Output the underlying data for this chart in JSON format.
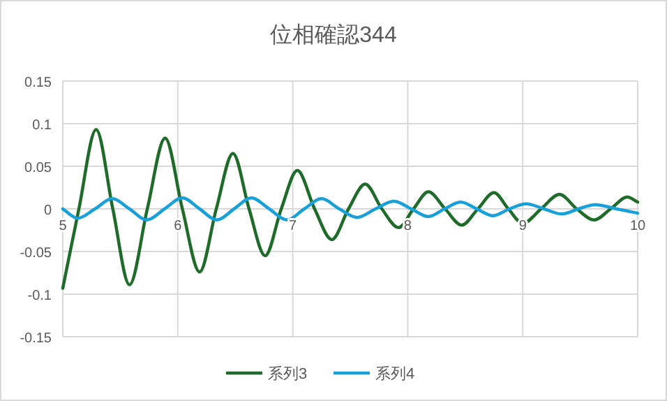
{
  "chart_data": {
    "type": "line",
    "title": "位相確認344",
    "xlim": [
      5,
      10
    ],
    "xticks": [
      5,
      6,
      7,
      8,
      9,
      10
    ],
    "ylim": [
      -0.15,
      0.15
    ],
    "yticks": [
      -0.15,
      -0.1,
      -0.05,
      0,
      0.05,
      0.1,
      0.15
    ],
    "grid": true,
    "legend": "bottom",
    "marker": "none",
    "line_style": "solid",
    "series": [
      {
        "name": "系列3",
        "color": "#1e6b2a",
        "x": [
          5,
          5.14,
          5.29,
          5.435,
          5.58,
          5.735,
          5.89,
          6.04,
          6.19,
          6.335,
          6.48,
          6.62,
          6.76,
          6.9,
          7.04,
          7.19,
          7.34,
          7.485,
          7.63,
          7.775,
          7.92,
          8.05,
          8.18,
          8.325,
          8.47,
          8.61,
          8.75,
          8.875,
          9.0,
          9.16,
          9.32,
          9.47,
          9.62,
          9.765,
          9.91,
          10
        ],
        "values": [
          -0.093,
          0,
          0.093,
          0,
          -0.089,
          0,
          0.083,
          0,
          -0.074,
          0,
          0.065,
          0,
          -0.055,
          0,
          0.045,
          0,
          -0.036,
          0,
          0.029,
          0,
          -0.022,
          0,
          0.02,
          0,
          -0.019,
          0,
          0.019,
          0,
          -0.017,
          0,
          0.017,
          0,
          -0.013,
          0,
          0.014,
          0.008
        ]
      },
      {
        "name": "系列4",
        "color": "#1aa0d8",
        "x": [
          5,
          5.13,
          5.28,
          5.43,
          5.58,
          5.73,
          5.885,
          6.04,
          6.19,
          6.34,
          6.49,
          6.64,
          6.795,
          6.95,
          7.1,
          7.25,
          7.405,
          7.56,
          7.72,
          7.88,
          8.03,
          8.18,
          8.32,
          8.46,
          8.6,
          8.74,
          8.885,
          9.03,
          9.185,
          9.34,
          9.485,
          9.63,
          9.815,
          10
        ],
        "values": [
          0,
          -0.011,
          0,
          0.012,
          0,
          -0.013,
          0,
          0.013,
          0,
          -0.013,
          0,
          0.013,
          0,
          -0.013,
          0,
          0.012,
          0,
          -0.01,
          0,
          0.009,
          0,
          -0.009,
          0,
          0.008,
          0,
          -0.008,
          0,
          0.006,
          0,
          -0.006,
          0,
          0.005,
          0,
          -0.005
        ]
      }
    ]
  }
}
